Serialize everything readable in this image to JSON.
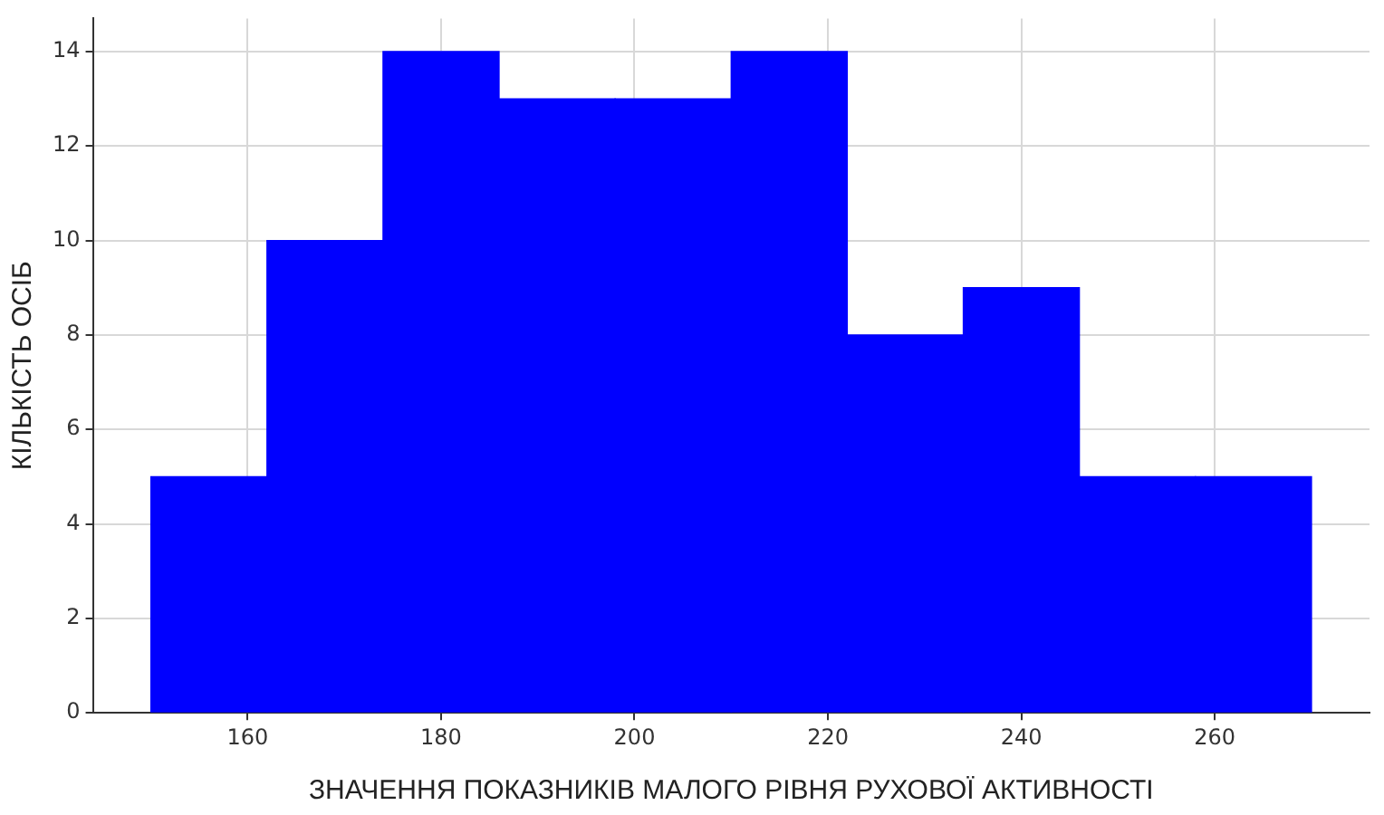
{
  "chart_data": {
    "type": "histogram",
    "xlabel": "ЗНАЧЕННЯ ПОКАЗНИКІВ МАЛОГО РІВНЯ РУХОВОЇ АКТИВНОСТІ",
    "ylabel": "КІЛЬКІСТЬ ОСІБ",
    "bins": [
      150,
      162,
      174,
      186,
      198,
      210,
      222,
      234,
      246,
      258,
      270
    ],
    "values": [
      5,
      10,
      14,
      13,
      13,
      14,
      8,
      9,
      5,
      5
    ],
    "color": "#0000ff",
    "xlim": [
      144,
      276
    ],
    "ylim": [
      0,
      14.7
    ],
    "xticks": [
      160,
      180,
      200,
      220,
      240,
      260
    ],
    "yticks": [
      0,
      2,
      4,
      6,
      8,
      10,
      12,
      14
    ],
    "grid": true
  }
}
